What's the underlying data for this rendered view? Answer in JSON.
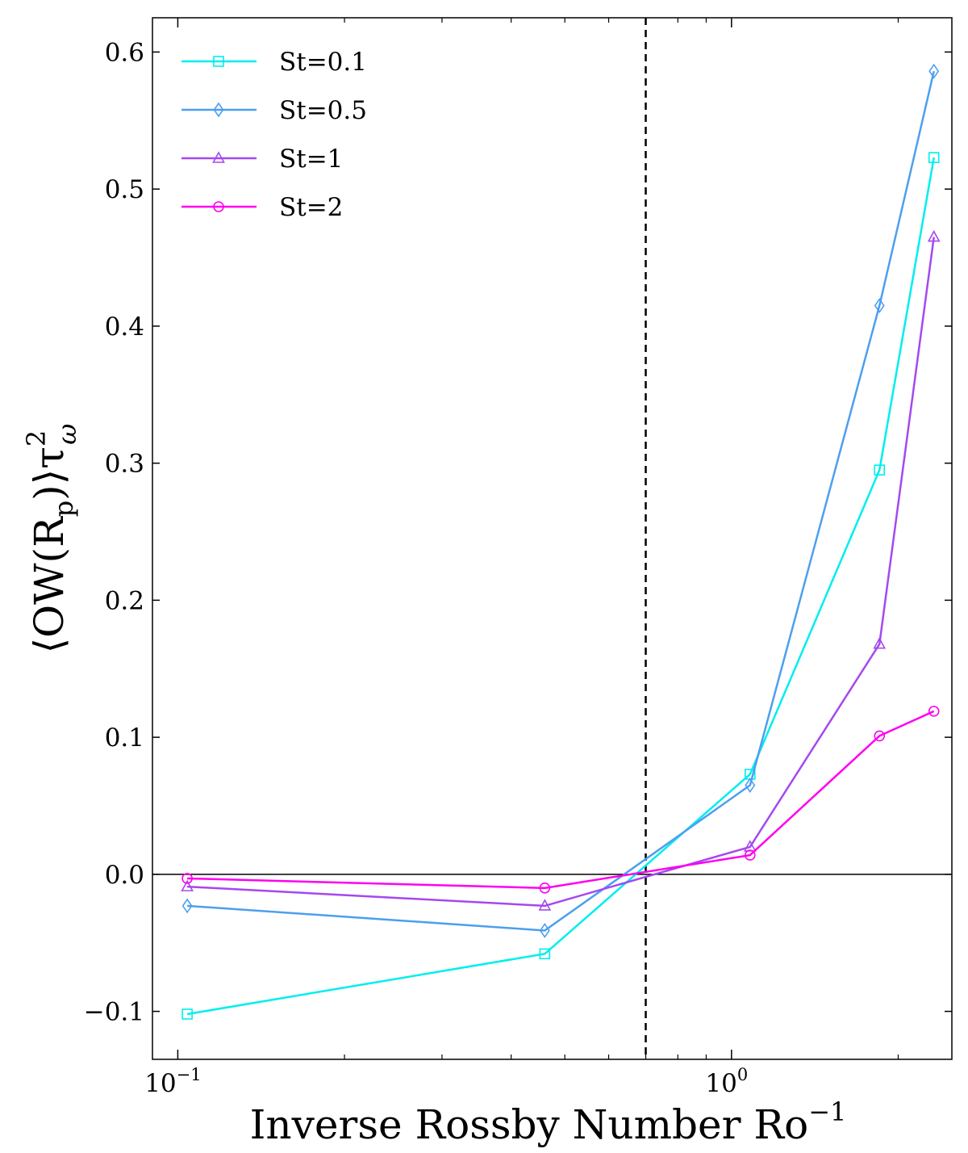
{
  "chart_data": {
    "type": "line",
    "xscale": "log",
    "xlim": [
      0.09,
      2.5
    ],
    "ylim": [
      -0.135,
      0.625
    ],
    "xlabel": "Inverse Rossby Number Ro",
    "xlabel_sup": "−1",
    "ylabel": "⟨OW(R",
    "ylabel_sub": "p",
    "ylabel_tail": ")⟩τ",
    "ylabel_tau_sup": "2",
    "ylabel_tau_sub": "ω",
    "x_ticks": [
      {
        "value": 0.1,
        "base": "10",
        "exp": "−1"
      },
      {
        "value": 1,
        "base": "10",
        "exp": "0"
      }
    ],
    "y_ticks": [
      {
        "value": -0.1,
        "label": "−0.1"
      },
      {
        "value": 0.0,
        "label": "0.0"
      },
      {
        "value": 0.1,
        "label": "0.1"
      },
      {
        "value": 0.2,
        "label": "0.2"
      },
      {
        "value": 0.3,
        "label": "0.3"
      },
      {
        "value": 0.4,
        "label": "0.4"
      },
      {
        "value": 0.5,
        "label": "0.5"
      },
      {
        "value": 0.6,
        "label": "0.6"
      }
    ],
    "reference_lines": {
      "horizontal_y": 0.0,
      "vertical_x_dashed": 0.7
    },
    "legend_position": "top-left",
    "grid": false,
    "x": [
      0.104,
      0.46,
      1.08,
      1.85,
      2.32
    ],
    "series": [
      {
        "name": "St=0.1",
        "color": "#00eeee",
        "marker": "square",
        "values": [
          -0.102,
          -0.058,
          0.073,
          0.295,
          0.523
        ]
      },
      {
        "name": "St=0.5",
        "color": "#4c9ff0",
        "marker": "diamond",
        "values": [
          -0.023,
          -0.041,
          0.065,
          0.415,
          0.586
        ]
      },
      {
        "name": "St=1",
        "color": "#a548f0",
        "marker": "triangle",
        "values": [
          -0.009,
          -0.023,
          0.02,
          0.168,
          0.465
        ]
      },
      {
        "name": "St=2",
        "color": "#ff00f0",
        "marker": "circle",
        "values": [
          -0.003,
          -0.01,
          0.014,
          0.101,
          0.119
        ]
      }
    ]
  }
}
